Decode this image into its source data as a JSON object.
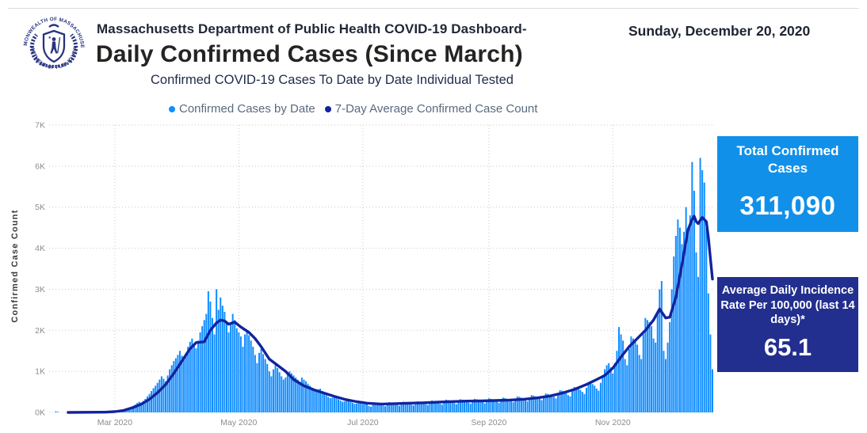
{
  "header": {
    "agency_line": "Massachusetts Department of Public Health COVID-19 Dashboard-",
    "date_line": "Sunday, December 20, 2020",
    "title": "Daily Confirmed Cases (Since March)",
    "subtitle": "Confirmed COVID-19 Cases To Date by Date Individual Tested"
  },
  "logo": {
    "top_text": "COMMONWEALTH OF MASSACHUSETTS",
    "bottom_text": "DEPARTMENT OF PUBLIC HEALTH",
    "color": "#27337E"
  },
  "legend": [
    {
      "label": "Confirmed Cases by Date",
      "color": "#118DFF"
    },
    {
      "label": "7-Day Average Confirmed Case Count",
      "color": "#12239E"
    }
  ],
  "kpi_cards": [
    {
      "title": "Total Confirmed Cases",
      "value": "311,090",
      "bg": "#1190E9"
    },
    {
      "title": "Average Daily Incidence Rate Per 100,000 (last 14 days)*",
      "value": "65.1",
      "bg": "#222F8E"
    }
  ],
  "chart_data": {
    "type": "bar",
    "title": "Confirmed COVID-19 Cases To Date by Date Individual Tested",
    "xlabel": "",
    "ylabel": "Confirmed Case Count",
    "ylim": [
      0,
      7000
    ],
    "grid": "dotted",
    "legend_position": "top",
    "bar_color": "#118DFF",
    "line_color": "#12239E",
    "y_ticks": [
      "0K",
      "1K",
      "2K",
      "3K",
      "4K",
      "5K",
      "6K",
      "7K"
    ],
    "x_ticks": [
      {
        "date": "2020-03-01",
        "label": "Mar 2020"
      },
      {
        "date": "2020-05-01",
        "label": "May 2020"
      },
      {
        "date": "2020-07-01",
        "label": "Jul 2020"
      },
      {
        "date": "2020-09-01",
        "label": "Sep 2020"
      },
      {
        "date": "2020-11-01",
        "label": "Nov 2020"
      }
    ],
    "daily": {
      "name": "Confirmed Cases by Date",
      "start": "2020-02-01",
      "values": [
        28,
        12,
        0,
        0,
        0,
        0,
        0,
        0,
        0,
        0,
        0,
        0,
        0,
        0,
        0,
        0,
        0,
        0,
        0,
        0,
        0,
        0,
        0,
        2,
        3,
        5,
        8,
        12,
        18,
        25,
        32,
        41,
        38,
        55,
        70,
        92,
        110,
        135,
        160,
        190,
        230,
        260,
        240,
        280,
        330,
        390,
        450,
        520,
        590,
        650,
        720,
        800,
        880,
        820,
        760,
        900,
        1050,
        1150,
        1250,
        1320,
        1400,
        1500,
        1380,
        1300,
        1450,
        1600,
        1720,
        1800,
        1680,
        1560,
        1750,
        1950,
        2100,
        2250,
        2400,
        2950,
        2700,
        2300,
        1900,
        3000,
        2500,
        2800,
        2600,
        2450,
        2200,
        1950,
        2150,
        2400,
        2250,
        2050,
        1950,
        1850,
        1600,
        1900,
        2000,
        1880,
        1750,
        1600,
        1400,
        1200,
        1450,
        1550,
        1420,
        1300,
        1180,
        1000,
        880,
        1050,
        1150,
        1080,
        980,
        880,
        800,
        850,
        950,
        1000,
        950,
        900,
        850,
        800,
        750,
        850,
        800,
        760,
        700,
        650,
        600,
        560,
        520,
        560,
        580,
        520,
        470,
        420,
        380,
        350,
        360,
        380,
        350,
        320,
        290,
        260,
        270,
        290,
        270,
        250,
        230,
        210,
        220,
        240,
        220,
        200,
        230,
        210,
        160,
        140,
        190,
        230,
        240,
        220,
        200,
        170,
        150,
        210,
        250,
        240,
        220,
        200,
        180,
        160,
        220,
        260,
        250,
        230,
        210,
        190,
        170,
        230,
        270,
        260,
        240,
        220,
        200,
        180,
        250,
        290,
        280,
        260,
        240,
        210,
        190,
        260,
        310,
        300,
        280,
        260,
        230,
        200,
        270,
        320,
        310,
        290,
        270,
        240,
        210,
        280,
        330,
        320,
        300,
        280,
        250,
        220,
        290,
        340,
        330,
        310,
        290,
        260,
        230,
        300,
        360,
        350,
        330,
        310,
        280,
        250,
        330,
        390,
        380,
        360,
        340,
        300,
        270,
        350,
        420,
        410,
        390,
        370,
        330,
        300,
        380,
        460,
        450,
        430,
        410,
        380,
        340,
        450,
        540,
        530,
        510,
        470,
        420,
        390,
        520,
        620,
        610,
        590,
        550,
        500,
        450,
        600,
        720,
        710,
        690,
        650,
        580,
        530,
        720,
        900,
        1050,
        1150,
        1200,
        1100,
        950,
        1200,
        1500,
        2080,
        1900,
        1750,
        1300,
        1150,
        1550,
        1850,
        1800,
        1750,
        1650,
        1400,
        1300,
        1900,
        2300,
        2250,
        2200,
        2100,
        1800,
        1700,
        2400,
        3000,
        3200,
        1500,
        1300,
        1700,
        2200,
        3000,
        3800,
        4300,
        4700,
        4500,
        4100,
        4400,
        5000,
        4500,
        4800,
        6100,
        5400,
        3900,
        3300,
        6200,
        5900,
        5600,
        4500,
        2900,
        1900,
        1050
      ]
    },
    "avg7": {
      "name": "7-Day Average Confirmed Case Count",
      "points": [
        [
          "2020-02-07",
          0
        ],
        [
          "2020-02-25",
          5
        ],
        [
          "2020-03-01",
          20
        ],
        [
          "2020-03-05",
          45
        ],
        [
          "2020-03-10",
          120
        ],
        [
          "2020-03-14",
          200
        ],
        [
          "2020-03-18",
          320
        ],
        [
          "2020-03-22",
          480
        ],
        [
          "2020-03-26",
          680
        ],
        [
          "2020-03-30",
          950
        ],
        [
          "2020-04-03",
          1250
        ],
        [
          "2020-04-07",
          1550
        ],
        [
          "2020-04-10",
          1700
        ],
        [
          "2020-04-14",
          1720
        ],
        [
          "2020-04-17",
          2000
        ],
        [
          "2020-04-20",
          2180
        ],
        [
          "2020-04-22",
          2250
        ],
        [
          "2020-04-24",
          2230
        ],
        [
          "2020-04-26",
          2150
        ],
        [
          "2020-04-29",
          2200
        ],
        [
          "2020-05-02",
          2080
        ],
        [
          "2020-05-06",
          1950
        ],
        [
          "2020-05-09",
          1800
        ],
        [
          "2020-05-12",
          1600
        ],
        [
          "2020-05-16",
          1300
        ],
        [
          "2020-05-20",
          1150
        ],
        [
          "2020-05-24",
          1000
        ],
        [
          "2020-05-28",
          800
        ],
        [
          "2020-06-02",
          650
        ],
        [
          "2020-06-07",
          550
        ],
        [
          "2020-06-12",
          470
        ],
        [
          "2020-06-17",
          390
        ],
        [
          "2020-06-22",
          320
        ],
        [
          "2020-06-27",
          270
        ],
        [
          "2020-07-03",
          225
        ],
        [
          "2020-07-10",
          205
        ],
        [
          "2020-07-17",
          215
        ],
        [
          "2020-07-24",
          225
        ],
        [
          "2020-07-31",
          235
        ],
        [
          "2020-08-07",
          250
        ],
        [
          "2020-08-14",
          265
        ],
        [
          "2020-08-21",
          275
        ],
        [
          "2020-08-28",
          280
        ],
        [
          "2020-09-04",
          290
        ],
        [
          "2020-09-11",
          300
        ],
        [
          "2020-09-18",
          320
        ],
        [
          "2020-09-25",
          355
        ],
        [
          "2020-10-01",
          400
        ],
        [
          "2020-10-07",
          470
        ],
        [
          "2020-10-13",
          560
        ],
        [
          "2020-10-19",
          680
        ],
        [
          "2020-10-24",
          800
        ],
        [
          "2020-10-28",
          900
        ],
        [
          "2020-11-01",
          1080
        ],
        [
          "2020-11-05",
          1350
        ],
        [
          "2020-11-09",
          1600
        ],
        [
          "2020-11-13",
          1800
        ],
        [
          "2020-11-17",
          2000
        ],
        [
          "2020-11-21",
          2250
        ],
        [
          "2020-11-24",
          2520
        ],
        [
          "2020-11-27",
          2300
        ],
        [
          "2020-11-29",
          2320
        ],
        [
          "2020-12-02",
          2800
        ],
        [
          "2020-12-05",
          3600
        ],
        [
          "2020-12-08",
          4450
        ],
        [
          "2020-12-10",
          4700
        ],
        [
          "2020-12-11",
          4780
        ],
        [
          "2020-12-12",
          4650
        ],
        [
          "2020-12-13",
          4600
        ],
        [
          "2020-12-14",
          4680
        ],
        [
          "2020-12-15",
          4750
        ],
        [
          "2020-12-16",
          4700
        ],
        [
          "2020-12-17",
          4650
        ],
        [
          "2020-12-18",
          4250
        ],
        [
          "2020-12-19",
          3750
        ],
        [
          "2020-12-20",
          3250
        ]
      ]
    }
  }
}
